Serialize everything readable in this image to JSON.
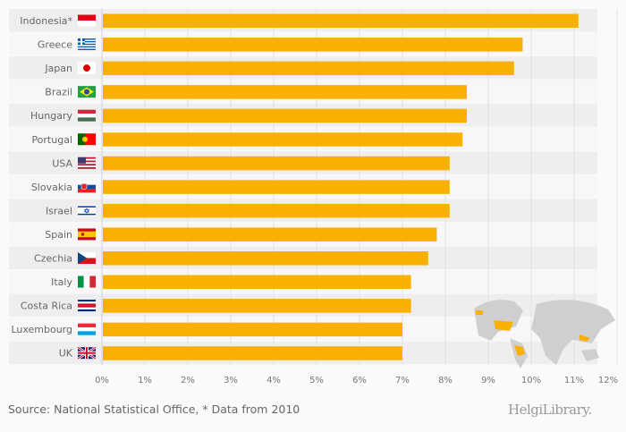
{
  "chart_data": {
    "type": "bar",
    "orientation": "horizontal",
    "categories": [
      "Indonesia*",
      "Greece",
      "Japan",
      "Brazil",
      "Hungary",
      "Portugal",
      "USA",
      "Slovakia",
      "Israel",
      "Spain",
      "Czechia",
      "Italy",
      "Costa Rica",
      "Luxembourg",
      "UK"
    ],
    "values": [
      11.1,
      9.8,
      9.6,
      8.5,
      8.5,
      8.4,
      8.1,
      8.1,
      8.1,
      7.8,
      7.6,
      7.2,
      7.2,
      7.0,
      7.0
    ],
    "flags": [
      "indonesia-flag",
      "greece-flag",
      "japan-flag",
      "brazil-flag",
      "hungary-flag",
      "portugal-flag",
      "usa-flag",
      "slovakia-flag",
      "israel-flag",
      "spain-flag",
      "czechia-flag",
      "italy-flag",
      "costa-rica-flag",
      "luxembourg-flag",
      "uk-flag"
    ],
    "xlim": [
      0,
      12
    ],
    "ticks": [
      "0%",
      "1%",
      "2%",
      "3%",
      "4%",
      "5%",
      "6%",
      "7%",
      "8%",
      "9%",
      "10%",
      "11%",
      "12%"
    ],
    "bar_color": "#f9b000",
    "grid": true
  },
  "footer": {
    "source": "Source: National Statistical Office, * Data from 2010",
    "logo": "HelgiLibrary."
  }
}
